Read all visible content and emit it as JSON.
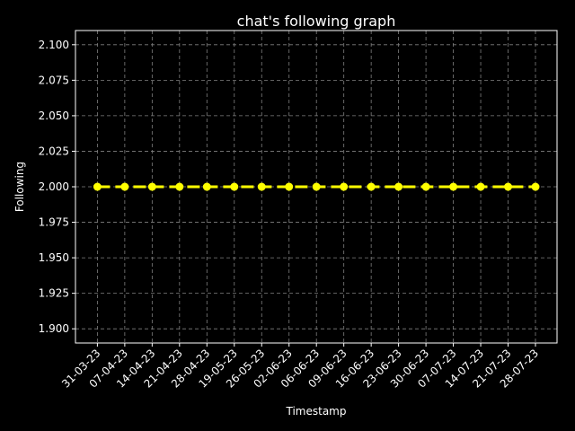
{
  "chart_data": {
    "type": "line",
    "title": "chat's following graph",
    "xlabel": "Timestamp",
    "ylabel": "Following",
    "categories": [
      "31-03-23",
      "07-04-23",
      "14-04-23",
      "21-04-23",
      "28-04-23",
      "19-05-23",
      "26-05-23",
      "02-06-23",
      "06-06-23",
      "09-06-23",
      "16-06-23",
      "23-06-23",
      "30-06-23",
      "07-07-23",
      "14-07-23",
      "21-07-23",
      "28-07-23"
    ],
    "series": [
      {
        "values": [
          2,
          2,
          2,
          2,
          2,
          2,
          2,
          2,
          2,
          2,
          2,
          2,
          2,
          2,
          2,
          2,
          2
        ]
      }
    ],
    "ylim": [
      1.89,
      2.11
    ],
    "yticks": [
      "1.900",
      "1.925",
      "1.950",
      "1.975",
      "2.000",
      "2.025",
      "2.050",
      "2.075",
      "2.100"
    ],
    "grid": true,
    "line_style": "dashed",
    "marker": "circle"
  },
  "colors": {
    "background": "#000000",
    "axes": "#ffffff",
    "grid": "#808080",
    "series": "#ffff00",
    "text": "#ffffff"
  }
}
